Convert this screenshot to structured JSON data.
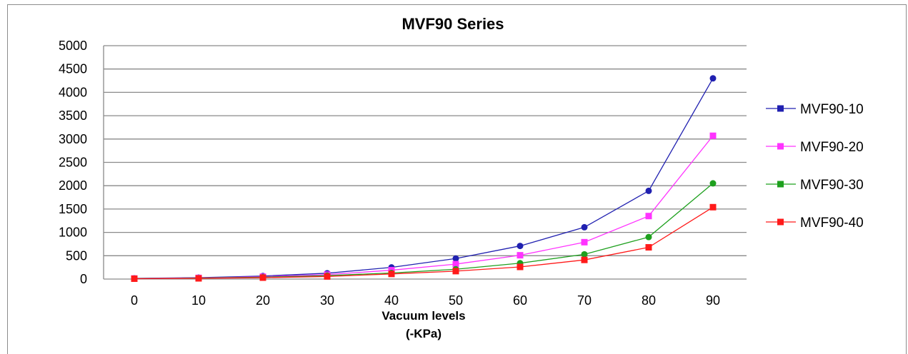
{
  "chart_data": {
    "type": "line",
    "title": "MVF90 Series",
    "xlabel": "Vacuum levels",
    "xlabel_unit": "(-KPa)",
    "ylabel": "",
    "x": [
      0,
      10,
      20,
      30,
      40,
      50,
      60,
      70,
      80,
      90
    ],
    "x_tick_labels": [
      "0",
      "10",
      "20",
      "30",
      "40",
      "50",
      "60",
      "70",
      "80",
      "90"
    ],
    "ylim": [
      0,
      5000
    ],
    "y_ticks": [
      0,
      500,
      1000,
      1500,
      2000,
      2500,
      3000,
      3500,
      4000,
      4500,
      5000
    ],
    "grid": "horizontal",
    "legend_position": "right",
    "series": [
      {
        "name": "MVF90-10",
        "color": "#2020b0",
        "marker": "circle",
        "values": [
          15,
          30,
          65,
          125,
          250,
          440,
          710,
          1110,
          1890,
          4300
        ]
      },
      {
        "name": "MVF90-20",
        "color": "#ff33ff",
        "marker": "square",
        "values": [
          12,
          25,
          50,
          95,
          190,
          320,
          510,
          790,
          1350,
          3070
        ]
      },
      {
        "name": "MVF90-30",
        "color": "#1ea01e",
        "marker": "circle",
        "values": [
          10,
          20,
          40,
          75,
          130,
          210,
          340,
          530,
          900,
          2050
        ]
      },
      {
        "name": "MVF90-40",
        "color": "#ff1a1a",
        "marker": "square",
        "values": [
          8,
          15,
          30,
          55,
          110,
          170,
          260,
          410,
          680,
          1540
        ]
      }
    ]
  }
}
